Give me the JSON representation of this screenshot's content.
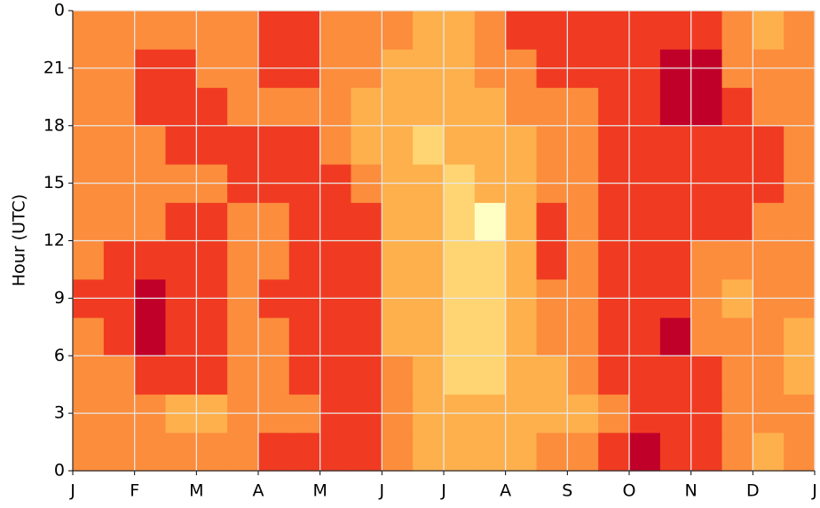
{
  "chart_data": {
    "type": "heatmap",
    "ylabel": "Hour (UTC)",
    "xlim": [
      0,
      12
    ],
    "xticks": [
      {
        "value": 0,
        "label": "J"
      },
      {
        "value": 1,
        "label": "F"
      },
      {
        "value": 2,
        "label": "M"
      },
      {
        "value": 3,
        "label": "A"
      },
      {
        "value": 4,
        "label": "M"
      },
      {
        "value": 5,
        "label": "J"
      },
      {
        "value": 6,
        "label": "J"
      },
      {
        "value": 7,
        "label": "A"
      },
      {
        "value": 8,
        "label": "S"
      },
      {
        "value": 9,
        "label": "O"
      },
      {
        "value": 10,
        "label": "N"
      },
      {
        "value": 11,
        "label": "D"
      },
      {
        "value": 12,
        "label": "J"
      }
    ],
    "ylim": [
      0,
      24
    ],
    "yticks": [
      0,
      3,
      6,
      9,
      12,
      15,
      18,
      21,
      {
        "value": 24,
        "label": "0"
      }
    ],
    "grid": true,
    "colors": [
      "#ffffc4",
      "#fed572",
      "#feb04c",
      "#fc8d3c",
      "#f03b22",
      "#c1002a"
    ],
    "z": [
      [
        3,
        3,
        3,
        3,
        3,
        3,
        4,
        4,
        4,
        4,
        3,
        2,
        2,
        2,
        2,
        3,
        3,
        4,
        5,
        4,
        4,
        3,
        2,
        3
      ],
      [
        3,
        3,
        3,
        2,
        2,
        3,
        3,
        3,
        4,
        4,
        3,
        2,
        2,
        2,
        2,
        2,
        2,
        3,
        4,
        4,
        4,
        3,
        3,
        3
      ],
      [
        3,
        3,
        4,
        4,
        4,
        3,
        3,
        4,
        4,
        4,
        3,
        2,
        1,
        1,
        2,
        2,
        3,
        4,
        4,
        4,
        4,
        3,
        3,
        2
      ],
      [
        3,
        4,
        5,
        4,
        4,
        3,
        3,
        4,
        4,
        4,
        2,
        2,
        1,
        1,
        2,
        3,
        3,
        4,
        4,
        5,
        3,
        3,
        3,
        2
      ],
      [
        4,
        4,
        5,
        4,
        4,
        3,
        4,
        4,
        4,
        4,
        2,
        2,
        1,
        1,
        2,
        3,
        3,
        4,
        4,
        4,
        3,
        2,
        3,
        3
      ],
      [
        3,
        4,
        4,
        4,
        4,
        3,
        3,
        4,
        4,
        4,
        2,
        2,
        1,
        1,
        2,
        4,
        3,
        4,
        4,
        4,
        3,
        3,
        3,
        3
      ],
      [
        3,
        3,
        3,
        4,
        4,
        3,
        3,
        4,
        4,
        4,
        2,
        2,
        1,
        0,
        2,
        4,
        3,
        4,
        4,
        4,
        4,
        4,
        3,
        3
      ],
      [
        3,
        3,
        3,
        3,
        3,
        4,
        4,
        4,
        4,
        3,
        2,
        2,
        1,
        2,
        2,
        3,
        3,
        4,
        4,
        4,
        4,
        4,
        4,
        3
      ],
      [
        3,
        3,
        3,
        4,
        4,
        4,
        4,
        4,
        3,
        2,
        2,
        1,
        2,
        2,
        2,
        3,
        3,
        4,
        4,
        4,
        4,
        4,
        4,
        3
      ],
      [
        3,
        3,
        4,
        4,
        4,
        3,
        3,
        3,
        3,
        2,
        2,
        2,
        2,
        2,
        3,
        3,
        3,
        4,
        4,
        5,
        5,
        4,
        3,
        3
      ],
      [
        3,
        3,
        4,
        4,
        3,
        3,
        4,
        4,
        3,
        3,
        2,
        2,
        2,
        3,
        3,
        4,
        4,
        4,
        4,
        5,
        5,
        3,
        3,
        3
      ],
      [
        3,
        3,
        3,
        3,
        3,
        3,
        4,
        4,
        3,
        3,
        3,
        2,
        2,
        3,
        4,
        4,
        4,
        4,
        4,
        4,
        4,
        3,
        2,
        3
      ]
    ]
  }
}
